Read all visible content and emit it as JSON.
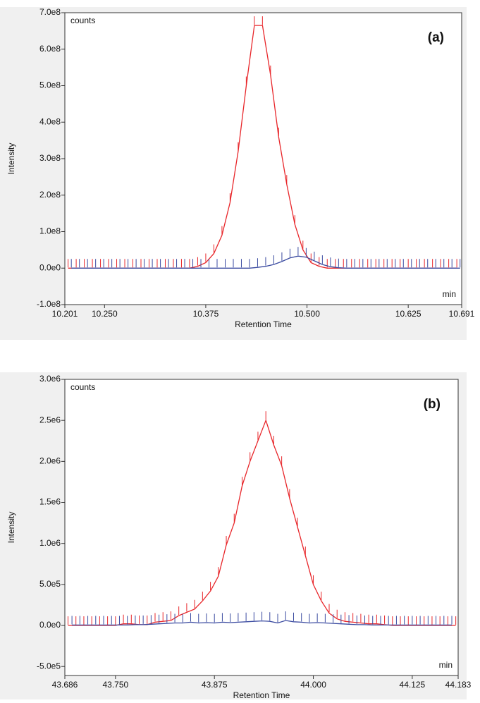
{
  "chart_data": [
    {
      "type": "line",
      "annotation": "(a)",
      "y_unit": "counts",
      "x_unit": "min",
      "y_label": "Intensity",
      "x_label": "Retention Time",
      "xlim": [
        10.201,
        10.691
      ],
      "ylim": [
        -100000000,
        700000000
      ],
      "xticks": [
        10.201,
        {
          "value": 10.25,
          "label": "10.250"
        },
        10.375,
        {
          "value": 10.5,
          "label": "10.500"
        },
        10.625,
        10.691
      ],
      "yticks": [
        {
          "value": -100000000,
          "label": "-1.0e8"
        },
        {
          "value": 0,
          "label": "0.0e0"
        },
        {
          "value": 100000000,
          "label": "1.0e8"
        },
        {
          "value": 200000000,
          "label": "2.0e8"
        },
        {
          "value": 300000000,
          "label": "3.0e8"
        },
        {
          "value": 400000000,
          "label": "4.0e8"
        },
        {
          "value": 500000000,
          "label": "5.0e8"
        },
        {
          "value": 600000000,
          "label": "6.0e8"
        },
        {
          "value": 700000000,
          "label": "7.0e8"
        }
      ],
      "series": [
        {
          "color": "#e8262a",
          "x": [
            10.205,
            10.215,
            10.225,
            10.235,
            10.245,
            10.255,
            10.265,
            10.275,
            10.285,
            10.295,
            10.305,
            10.315,
            10.325,
            10.335,
            10.345,
            10.355,
            10.365,
            10.375,
            10.385,
            10.395,
            10.405,
            10.415,
            10.425,
            10.435,
            10.445,
            10.455,
            10.465,
            10.475,
            10.485,
            10.495,
            10.505,
            10.515,
            10.525,
            10.535,
            10.545,
            10.555,
            10.565,
            10.575,
            10.585,
            10.595,
            10.605,
            10.615,
            10.625,
            10.635,
            10.645,
            10.655,
            10.665,
            10.675,
            10.685
          ],
          "values": [
            0,
            0,
            0,
            0,
            0,
            0,
            0,
            0,
            0,
            0,
            0,
            0,
            0,
            0,
            0,
            0,
            5000000,
            15000000,
            40000000,
            90000000,
            180000000,
            320000000,
            500000000,
            665000000,
            665000000,
            530000000,
            360000000,
            230000000,
            120000000,
            50000000,
            15000000,
            5000000,
            0,
            0,
            0,
            0,
            0,
            0,
            0,
            0,
            0,
            0,
            0,
            0,
            0,
            0,
            0,
            0,
            0
          ]
        },
        {
          "color": "#3a4aa0",
          "x": [
            10.209,
            10.219,
            10.229,
            10.239,
            10.249,
            10.259,
            10.269,
            10.279,
            10.289,
            10.299,
            10.309,
            10.319,
            10.329,
            10.339,
            10.349,
            10.359,
            10.369,
            10.379,
            10.389,
            10.399,
            10.409,
            10.419,
            10.429,
            10.439,
            10.449,
            10.459,
            10.469,
            10.479,
            10.489,
            10.499,
            10.509,
            10.519,
            10.529,
            10.539,
            10.549,
            10.559,
            10.569,
            10.579,
            10.589,
            10.599,
            10.609,
            10.619,
            10.629,
            10.639,
            10.649,
            10.659,
            10.669,
            10.679,
            10.689
          ],
          "values": [
            0,
            0,
            0,
            0,
            0,
            0,
            0,
            0,
            0,
            0,
            0,
            0,
            0,
            0,
            0,
            0,
            0,
            0,
            0,
            0,
            0,
            0,
            0,
            2000000,
            5000000,
            10000000,
            18000000,
            28000000,
            33000000,
            30000000,
            20000000,
            10000000,
            4000000,
            1000000,
            0,
            0,
            0,
            0,
            0,
            0,
            0,
            0,
            0,
            0,
            0,
            0,
            0,
            0,
            0
          ]
        }
      ]
    },
    {
      "type": "line",
      "annotation": "(b)",
      "y_unit": "counts",
      "x_unit": "min",
      "y_label": "Intensity",
      "x_label": "Retention Time",
      "xlim": [
        43.686,
        44.183
      ],
      "ylim": [
        -610000,
        3000000
      ],
      "xticks": [
        43.686,
        {
          "value": 43.75,
          "label": "43.750"
        },
        43.875,
        {
          "value": 44,
          "label": "44.000"
        },
        44.125,
        44.183
      ],
      "yticks": [
        {
          "value": -500000,
          "label": "-5.0e5"
        },
        {
          "value": 0,
          "label": "0.0e0"
        },
        {
          "value": 500000,
          "label": "5.0e5"
        },
        {
          "value": 1000000,
          "label": "1.0e6"
        },
        {
          "value": 1500000,
          "label": "1.5e6"
        },
        {
          "value": 2000000,
          "label": "2.0e6"
        },
        {
          "value": 2500000,
          "label": "2.5e6"
        },
        {
          "value": 3000000,
          "label": "3.0e6"
        }
      ],
      "series": [
        {
          "color": "#e8262a",
          "x": [
            43.69,
            43.7,
            43.71,
            43.72,
            43.73,
            43.74,
            43.75,
            43.76,
            43.77,
            43.78,
            43.79,
            43.8,
            43.81,
            43.82,
            43.83,
            43.84,
            43.85,
            43.86,
            43.87,
            43.88,
            43.89,
            43.9,
            43.91,
            43.92,
            43.93,
            43.94,
            43.95,
            43.96,
            43.97,
            43.98,
            43.99,
            44,
            44.01,
            44.02,
            44.03,
            44.04,
            44.05,
            44.06,
            44.07,
            44.08,
            44.09,
            44.1,
            44.11,
            44.12,
            44.13,
            44.14,
            44.15,
            44.16,
            44.17,
            44.18
          ],
          "values": [
            0,
            0,
            0,
            0,
            0,
            0,
            0,
            20000,
            20000,
            10000,
            10000,
            40000,
            50000,
            60000,
            120000,
            160000,
            200000,
            300000,
            420000,
            600000,
            980000,
            1250000,
            1700000,
            2000000,
            2250000,
            2500000,
            2200000,
            1950000,
            1550000,
            1200000,
            850000,
            500000,
            300000,
            150000,
            80000,
            50000,
            40000,
            30000,
            20000,
            20000,
            10000,
            0,
            0,
            0,
            0,
            0,
            0,
            0,
            0,
            0
          ]
        },
        {
          "color": "#3a4aa0",
          "x": [
            43.695,
            43.705,
            43.715,
            43.725,
            43.735,
            43.745,
            43.755,
            43.765,
            43.775,
            43.785,
            43.795,
            43.805,
            43.815,
            43.825,
            43.835,
            43.845,
            43.855,
            43.865,
            43.875,
            43.885,
            43.895,
            43.905,
            43.915,
            43.925,
            43.935,
            43.945,
            43.955,
            43.965,
            43.975,
            43.985,
            43.995,
            44.005,
            44.015,
            44.025,
            44.035,
            44.045,
            44.055,
            44.065,
            44.075,
            44.085,
            44.095,
            44.105,
            44.115,
            44.125,
            44.135,
            44.145,
            44.155,
            44.165,
            44.175
          ],
          "values": [
            5000,
            5000,
            5000,
            5000,
            5000,
            5000,
            5000,
            5000,
            10000,
            10000,
            15000,
            20000,
            25000,
            30000,
            30000,
            40000,
            30000,
            35000,
            30000,
            40000,
            35000,
            40000,
            45000,
            50000,
            55000,
            50000,
            30000,
            60000,
            45000,
            40000,
            30000,
            35000,
            30000,
            25000,
            20000,
            15000,
            10000,
            10000,
            5000,
            5000,
            5000,
            5000,
            5000,
            5000,
            5000,
            5000,
            5000,
            5000,
            5000
          ]
        }
      ]
    }
  ]
}
